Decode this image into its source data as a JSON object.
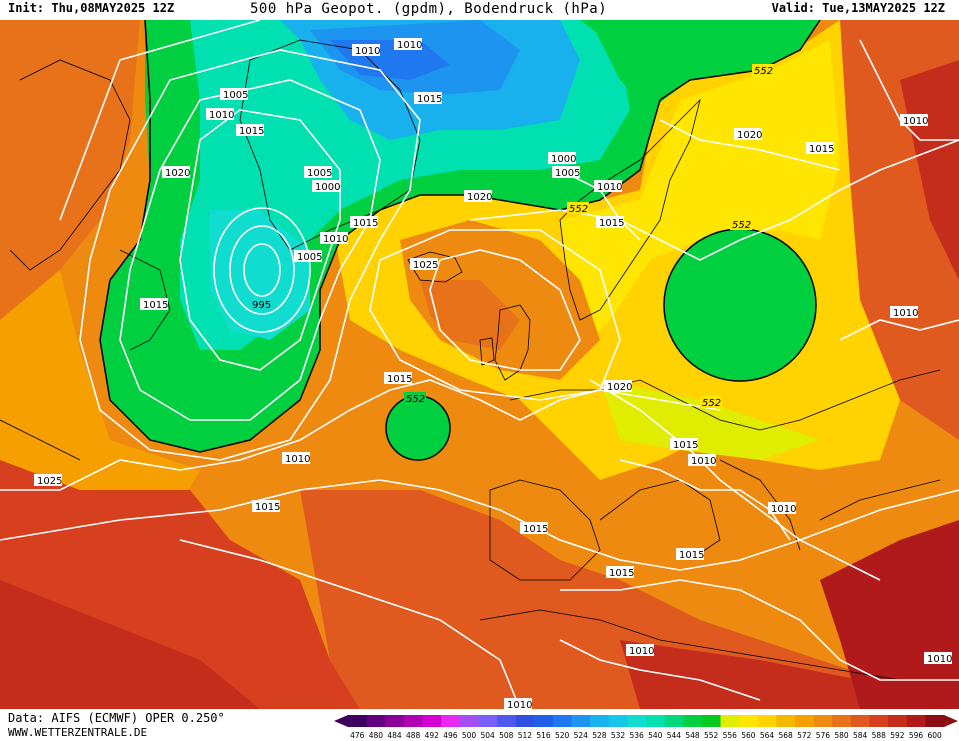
{
  "header": {
    "init": "Init: Thu,08MAY2025 12Z",
    "title": "500 hPa Geopot. (gpdm), Bodendruck (hPa)",
    "valid": "Valid: Tue,13MAY2025 12Z"
  },
  "footer": {
    "data_source": "Data: AIFS (ECMWF) OPER 0.250°",
    "website": "WWW.WETTERZENTRALE.DE"
  },
  "colors": {
    "dark_red": "#b01a1a",
    "red": "#d6401e",
    "orange": "#ef8a10",
    "orange_light": "#f5a800",
    "yellow": "#ffd200",
    "yellow_light": "#ffe600",
    "green": "#00d040",
    "green_dark": "#00b84a",
    "cyan": "#00e0d0",
    "light_blue": "#19b0ee",
    "blue": "#1e6ce8",
    "isobar": "#ffffff",
    "coastline": "#000000"
  },
  "legend": {
    "values": [
      "476",
      "480",
      "484",
      "488",
      "492",
      "496",
      "500",
      "504",
      "508",
      "512",
      "516",
      "520",
      "524",
      "528",
      "532",
      "536",
      "540",
      "544",
      "548",
      "552",
      "556",
      "560",
      "564",
      "568",
      "572",
      "576",
      "580",
      "584",
      "588",
      "592",
      "596",
      "600"
    ],
    "colors": [
      "#3c0060",
      "#62007e",
      "#8a0098",
      "#b000b4",
      "#d400d2",
      "#e828f0",
      "#a64ff0",
      "#7860f6",
      "#5058f0",
      "#2f50e0",
      "#2060e8",
      "#2078f0",
      "#1d95f0",
      "#19b0ee",
      "#15c8e8",
      "#10dcd0",
      "#00e0b0",
      "#00d880",
      "#00d040",
      "#00c820",
      "#e0ec00",
      "#ffe600",
      "#ffd200",
      "#f5b800",
      "#f5a000",
      "#ef8a10",
      "#e8721a",
      "#e05a20",
      "#d6401e",
      "#c42c1c",
      "#b01a1a",
      "#8c0e14"
    ]
  },
  "map": {
    "isobar_labels": [
      "1010",
      "1010",
      "1005",
      "1010",
      "1015",
      "1020",
      "1015",
      "1000",
      "1005",
      "1005",
      "1000",
      "1005",
      "1010",
      "1010",
      "1005",
      "995",
      "1015",
      "1015",
      "1020",
      "552",
      "1015",
      "1025",
      "1020",
      "552",
      "1015",
      "1010",
      "552",
      "1010",
      "1015",
      "552",
      "1025",
      "1015",
      "1015",
      "1020",
      "552",
      "1015",
      "1010",
      "1010",
      "1010",
      "1015",
      "1015",
      "1010",
      "1010",
      "1010"
    ]
  }
}
